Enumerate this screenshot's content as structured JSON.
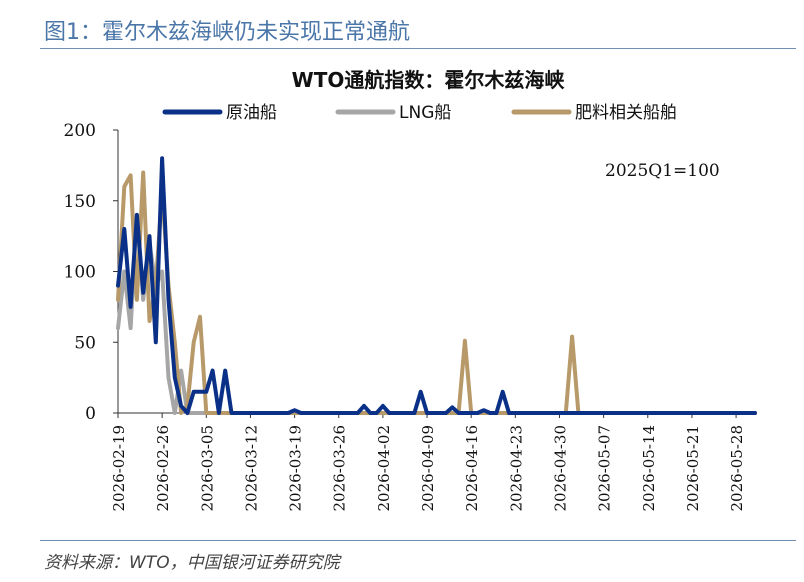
{
  "figure_title": "图1：霍尔木兹海峡仍未实现正常通航",
  "source": "资料来源：WTO，中国银河证券研究院",
  "chart_data": {
    "type": "line",
    "title": "WTO通航指数：霍尔木兹海峡",
    "annotation": "2025Q1=100",
    "xlabel": "",
    "ylabel": "",
    "ylim": [
      0,
      200
    ],
    "yticks": [
      0,
      50,
      100,
      150,
      200
    ],
    "x_range": [
      "2026-02-19",
      "2026-05-31"
    ],
    "x_ticks": [
      "2026-02-19",
      "2026-02-26",
      "2026-03-05",
      "2026-03-12",
      "2026-03-19",
      "2026-03-26",
      "2026-04-02",
      "2026-04-09",
      "2026-04-16",
      "2026-04-23",
      "2026-04-30",
      "2026-05-07",
      "2026-05-14",
      "2026-05-21",
      "2026-05-28"
    ],
    "legend_position": "top",
    "grid": false,
    "series": [
      {
        "name": "原油船",
        "color": "#0a3187",
        "points": [
          [
            "2026-02-19",
            90
          ],
          [
            "2026-02-20",
            130
          ],
          [
            "2026-02-21",
            75
          ],
          [
            "2026-02-22",
            140
          ],
          [
            "2026-02-23",
            85
          ],
          [
            "2026-02-24",
            125
          ],
          [
            "2026-02-25",
            50
          ],
          [
            "2026-02-26",
            180
          ],
          [
            "2026-02-27",
            80
          ],
          [
            "2026-02-28",
            25
          ],
          [
            "2026-03-01",
            5
          ],
          [
            "2026-03-02",
            0
          ],
          [
            "2026-03-03",
            15
          ],
          [
            "2026-03-04",
            15
          ],
          [
            "2026-03-05",
            15
          ],
          [
            "2026-03-06",
            30
          ],
          [
            "2026-03-07",
            0
          ],
          [
            "2026-03-08",
            30
          ],
          [
            "2026-03-09",
            0
          ],
          [
            "2026-03-10",
            0
          ],
          [
            "2026-03-18",
            0
          ],
          [
            "2026-03-19",
            2
          ],
          [
            "2026-03-20",
            0
          ],
          [
            "2026-03-29",
            0
          ],
          [
            "2026-03-30",
            5
          ],
          [
            "2026-03-31",
            0
          ],
          [
            "2026-04-01",
            0
          ],
          [
            "2026-04-02",
            5
          ],
          [
            "2026-04-03",
            0
          ],
          [
            "2026-04-07",
            0
          ],
          [
            "2026-04-08",
            15
          ],
          [
            "2026-04-09",
            0
          ],
          [
            "2026-04-12",
            0
          ],
          [
            "2026-04-13",
            4
          ],
          [
            "2026-04-14",
            0
          ],
          [
            "2026-04-17",
            0
          ],
          [
            "2026-04-18",
            2
          ],
          [
            "2026-04-19",
            0
          ],
          [
            "2026-04-20",
            0
          ],
          [
            "2026-04-21",
            15
          ],
          [
            "2026-04-22",
            0
          ],
          [
            "2026-05-31",
            0
          ]
        ]
      },
      {
        "name": "LNG船",
        "color": "#a6a6a6",
        "points": [
          [
            "2026-02-19",
            60
          ],
          [
            "2026-02-20",
            100
          ],
          [
            "2026-02-21",
            60
          ],
          [
            "2026-02-22",
            140
          ],
          [
            "2026-02-23",
            80
          ],
          [
            "2026-02-24",
            120
          ],
          [
            "2026-02-25",
            90
          ],
          [
            "2026-02-26",
            100
          ],
          [
            "2026-02-27",
            25
          ],
          [
            "2026-02-28",
            0
          ],
          [
            "2026-03-01",
            30
          ],
          [
            "2026-03-02",
            0
          ],
          [
            "2026-05-31",
            0
          ]
        ]
      },
      {
        "name": "肥料相关船舶",
        "color": "#b89a6a",
        "points": [
          [
            "2026-02-19",
            80
          ],
          [
            "2026-02-20",
            160
          ],
          [
            "2026-02-21",
            168
          ],
          [
            "2026-02-22",
            80
          ],
          [
            "2026-02-23",
            170
          ],
          [
            "2026-02-24",
            65
          ],
          [
            "2026-02-25",
            90
          ],
          [
            "2026-02-26",
            158
          ],
          [
            "2026-02-27",
            90
          ],
          [
            "2026-02-28",
            50
          ],
          [
            "2026-03-01",
            0
          ],
          [
            "2026-03-02",
            5
          ],
          [
            "2026-03-03",
            50
          ],
          [
            "2026-03-04",
            68
          ],
          [
            "2026-03-05",
            0
          ],
          [
            "2026-04-14",
            0
          ],
          [
            "2026-04-15",
            51
          ],
          [
            "2026-04-16",
            0
          ],
          [
            "2026-05-01",
            0
          ],
          [
            "2026-05-02",
            54
          ],
          [
            "2026-05-03",
            0
          ],
          [
            "2026-05-31",
            0
          ]
        ]
      }
    ]
  }
}
